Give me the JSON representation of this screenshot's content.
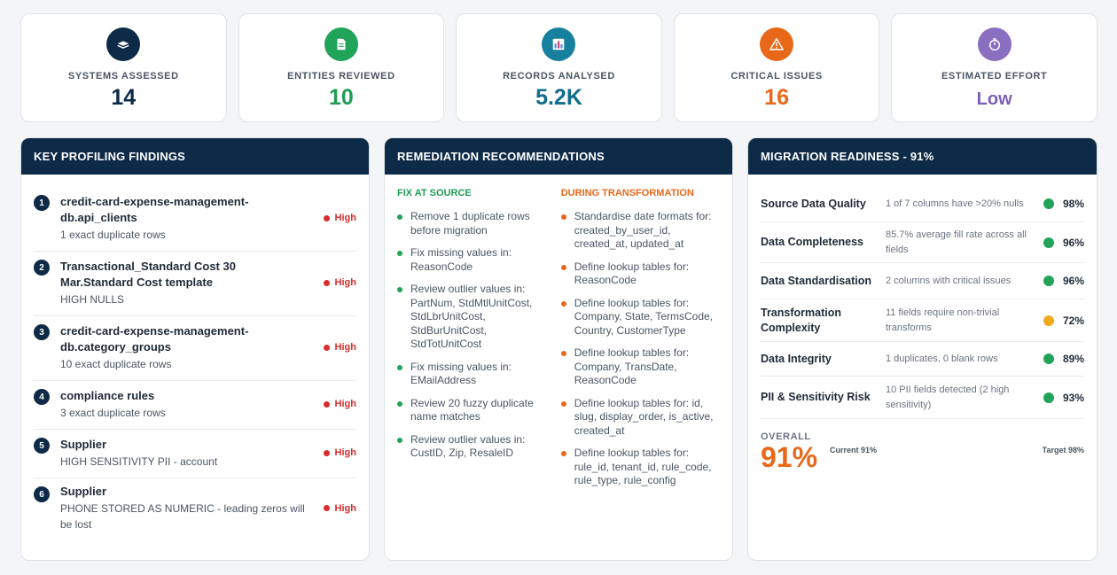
{
  "kpis": [
    {
      "label": "SYSTEMS ASSESSED",
      "value": "14",
      "color": "#0d2a47",
      "icon_bg": "#0d2a47",
      "icon": "database-icon"
    },
    {
      "label": "ENTITIES REVIEWED",
      "value": "10",
      "color": "#1f9d55",
      "icon_bg": "#22a35a",
      "icon": "document-icon"
    },
    {
      "label": "RECORDS ANALYSED",
      "value": "5.2K",
      "color": "#0f6e8c",
      "icon_bg": "#17809e",
      "icon": "bar-chart-icon"
    },
    {
      "label": "CRITICAL ISSUES",
      "value": "16",
      "color": "#e8681a",
      "icon_bg": "#e8681a",
      "icon": "warning-icon"
    },
    {
      "label": "ESTIMATED EFFORT",
      "value": "Low",
      "color": "#7b5fb4",
      "icon_bg": "#8a6fc0",
      "icon": "stopwatch-icon"
    }
  ],
  "findings": {
    "title": "KEY PROFILING FINDINGS",
    "items": [
      {
        "num": "1",
        "title": "credit-card-expense-management-db.api_clients",
        "sub": "1 exact duplicate rows",
        "severity": "High"
      },
      {
        "num": "2",
        "title": "Transactional_Standard Cost 30 Mar.Standard Cost template",
        "sub": "HIGH NULLS",
        "severity": "High"
      },
      {
        "num": "3",
        "title": "credit-card-expense-management-db.category_groups",
        "sub": "10 exact duplicate rows",
        "severity": "High"
      },
      {
        "num": "4",
        "title": "compliance rules",
        "sub": "3 exact duplicate rows",
        "severity": "High"
      },
      {
        "num": "5",
        "title": "Supplier",
        "sub": "HIGH SENSITIVITY PII - account",
        "severity": "High"
      },
      {
        "num": "6",
        "title": "Supplier",
        "sub": "PHONE STORED AS NUMERIC - leading zeros will be lost",
        "severity": "High"
      }
    ]
  },
  "remediation": {
    "title": "REMEDIATION RECOMMENDATIONS",
    "fix_at_source": {
      "heading": "FIX AT SOURCE",
      "items": [
        "Remove 1 duplicate rows before migration",
        "Fix missing values in: ReasonCode",
        "Review outlier values in: PartNum, StdMtlUnitCost, StdLbrUnitCost, StdBurUnitCost, StdTotUnitCost",
        "Fix missing values in: EMailAddress",
        "Review 20 fuzzy duplicate name matches",
        "Review outlier values in: CustID, Zip, ResaleID"
      ]
    },
    "during_transformation": {
      "heading": "DURING TRANSFORMATION",
      "items": [
        "Standardise date formats for: created_by_user_id, created_at, updated_at",
        "Define lookup tables for: ReasonCode",
        "Define lookup tables for: Company, State, TermsCode, Country, CustomerType",
        "Define lookup tables for: Company, TransDate, ReasonCode",
        "Define lookup tables for: id, slug, display_order, is_active, created_at",
        "Define lookup tables for: rule_id, tenant_id, rule_code, rule_type, rule_config"
      ]
    }
  },
  "readiness": {
    "title": "MIGRATION READINESS - 91%",
    "rows": [
      {
        "label": "Source Data Quality",
        "note": "1 of 7 columns have >20% nulls",
        "pct": "98%",
        "status": "green"
      },
      {
        "label": "Data Completeness",
        "note": "85.7% average fill rate across all fields",
        "pct": "96%",
        "status": "green"
      },
      {
        "label": "Data Standardisation",
        "note": "2 columns with critical issues",
        "pct": "96%",
        "status": "green"
      },
      {
        "label": "Transformation Complexity",
        "note": "11 fields require non-trivial transforms",
        "pct": "72%",
        "status": "amber"
      },
      {
        "label": "Data Integrity",
        "note": "1 duplicates, 0 blank rows",
        "pct": "89%",
        "status": "green"
      },
      {
        "label": "PII & Sensitivity Risk",
        "note": "10 PII fields detected (2 high sensitivity)",
        "pct": "93%",
        "status": "green"
      }
    ],
    "overall_label": "OVERALL",
    "overall_value": "91%",
    "current": "Current 91%",
    "target": "Target 98%"
  }
}
